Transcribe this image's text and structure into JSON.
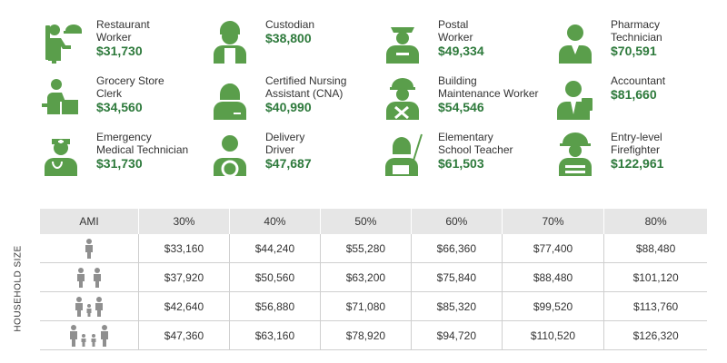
{
  "colors": {
    "accent": "#2e7a3c",
    "icon": "#5a9e4b",
    "person": "#8f8f8f",
    "header_bg": "#e6e6e6"
  },
  "occupations": [
    {
      "title": "Restaurant\nWorker",
      "wage": "$31,730",
      "icon": "waiter-icon"
    },
    {
      "title": "Custodian",
      "wage": "$38,800",
      "icon": "custodian-icon"
    },
    {
      "title": "Postal\nWorker",
      "wage": "$49,334",
      "icon": "postal-worker-icon"
    },
    {
      "title": "Pharmacy\nTechnician",
      "wage": "$70,591",
      "icon": "pharmacist-icon"
    },
    {
      "title": "Grocery Store\nClerk",
      "wage": "$34,560",
      "icon": "cashier-icon"
    },
    {
      "title": "Certified Nursing\nAssistant (CNA)",
      "wage": "$40,990",
      "icon": "nurse-icon"
    },
    {
      "title": "Building\nMaintenance Worker",
      "wage": "$54,546",
      "icon": "hardhat-worker-icon"
    },
    {
      "title": "Accountant",
      "wage": "$81,660",
      "icon": "accountant-icon"
    },
    {
      "title": "Emergency\nMedical Technician",
      "wage": "$31,730",
      "icon": "paramedic-icon"
    },
    {
      "title": "Delivery\nDriver",
      "wage": "$47,687",
      "icon": "driver-icon"
    },
    {
      "title": "Elementary\nSchool Teacher",
      "wage": "$61,503",
      "icon": "teacher-icon"
    },
    {
      "title": "Entry-level\nFirefighter",
      "wage": "$122,961",
      "icon": "firefighter-icon"
    }
  ],
  "table": {
    "side_label": "HOUSEHOLD SIZE",
    "headers": [
      "AMI",
      "30%",
      "40%",
      "50%",
      "60%",
      "70%",
      "80%"
    ],
    "rows": [
      {
        "household": "1-person-icon",
        "values": [
          "$33,160",
          "$44,240",
          "$55,280",
          "$66,360",
          "$77,400",
          "$88,480"
        ]
      },
      {
        "household": "2-person-icon",
        "values": [
          "$37,920",
          "$50,560",
          "$63,200",
          "$75,840",
          "$88,480",
          "$101,120"
        ]
      },
      {
        "household": "3-person-icon",
        "values": [
          "$42,640",
          "$56,880",
          "$71,080",
          "$85,320",
          "$99,520",
          "$113,760"
        ]
      },
      {
        "household": "4-person-icon",
        "values": [
          "$47,360",
          "$63,160",
          "$78,920",
          "$94,720",
          "$110,520",
          "$126,320"
        ]
      }
    ]
  }
}
